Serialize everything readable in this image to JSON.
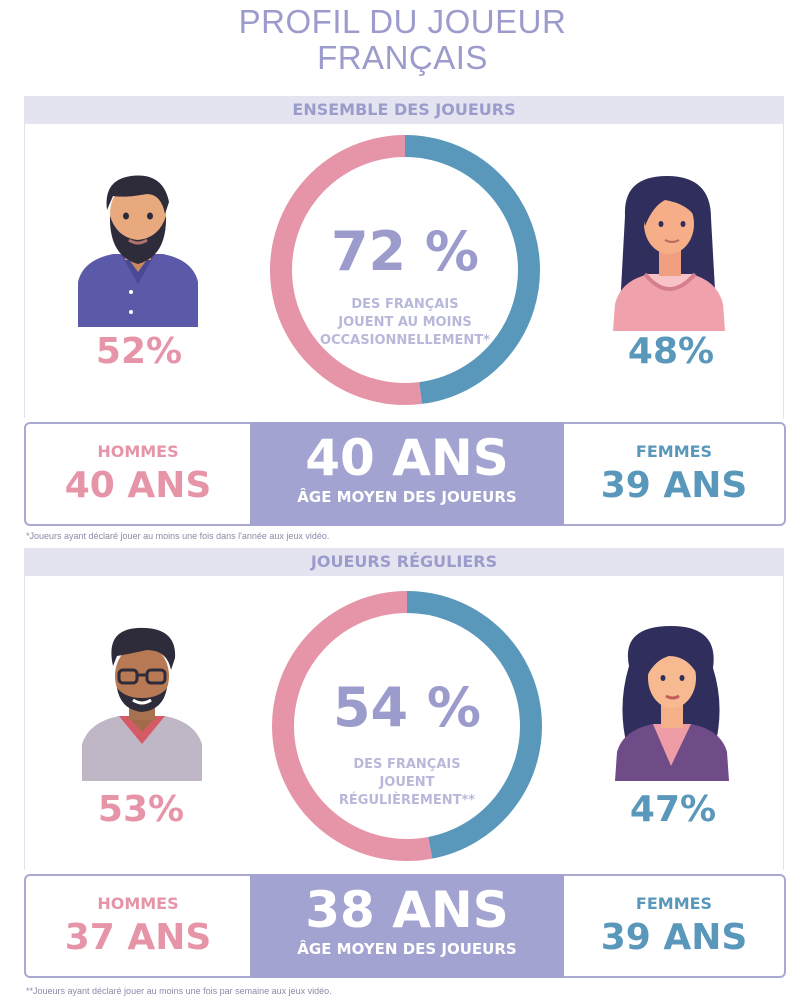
{
  "title": {
    "line1": "PROFIL DU JOUEUR",
    "line2": "FRANÇAIS"
  },
  "colors": {
    "pink": "#e695a8",
    "blue": "#5a98bb",
    "lavender": "#a3a3d1",
    "header_bg": "#e4e4f1"
  },
  "chart_data": [
    {
      "type": "pie",
      "title": "ENSEMBLE DES JOUEURS",
      "center_value": "72 %",
      "center_caption": [
        "DES FRANÇAIS",
        "JOUENT AU MOINS",
        "OCCASIONNELLEMENT*"
      ],
      "series": [
        {
          "name": "Hommes",
          "value": 52,
          "label": "52%",
          "color": "#e695a8"
        },
        {
          "name": "Femmes",
          "value": 48,
          "label": "48%",
          "color": "#5a98bb"
        }
      ],
      "ages": {
        "men_label": "HOMMES",
        "men_age": "40 ANS",
        "average": "40 ANS",
        "average_caption": "ÂGE MOYEN DES JOUEURS",
        "women_label": "FEMMES",
        "women_age": "39 ANS"
      },
      "footnote": "*Joueurs ayant déclaré jouer au moins une fois dans l'année aux jeux vidéo."
    },
    {
      "type": "pie",
      "title": "JOUEURS RÉGULIERS",
      "center_value": "54 %",
      "center_caption": [
        "DES FRANÇAIS",
        "JOUENT",
        "RÉGULIÈREMENT**"
      ],
      "series": [
        {
          "name": "Hommes",
          "value": 53,
          "label": "53%",
          "color": "#e695a8"
        },
        {
          "name": "Femmes",
          "value": 47,
          "label": "47%",
          "color": "#5a98bb"
        }
      ],
      "ages": {
        "men_label": "HOMMES",
        "men_age": "37 ANS",
        "average": "38 ANS",
        "average_caption": "ÂGE MOYEN DES JOUEURS",
        "women_label": "FEMMES",
        "women_age": "39 ANS"
      },
      "footnote": "**Joueurs ayant déclaré jouer au moins une fois par semaine aux jeux vidéo."
    }
  ]
}
